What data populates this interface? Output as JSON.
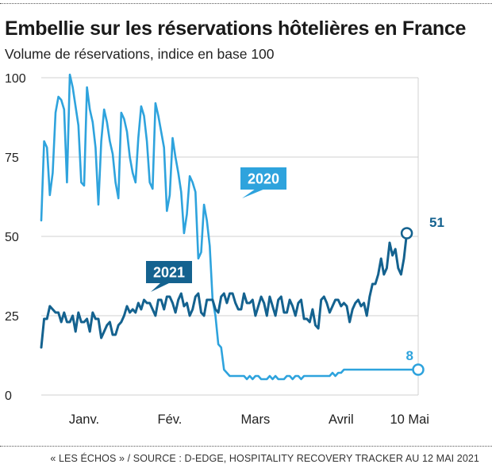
{
  "header": {
    "title": "Embellie sur les réservations hôtelières en France",
    "subtitle": "Volume de réservations, indice en base 100"
  },
  "footer": {
    "source": "« LES ÉCHOS » / SOURCE : D-EDGE, HOSPITALITY RECOVERY TRACKER AU 12 MAI 2021"
  },
  "colors": {
    "series_2020": "#2ea3dd",
    "series_2021": "#14628f",
    "grid": "#d0d0d0",
    "text": "#222222"
  },
  "chart_data": {
    "type": "line",
    "title": "Embellie sur les réservations hôtelières en France",
    "subtitle": "Volume de réservations, indice en base 100",
    "ylabel": "",
    "xlabel": "",
    "ylim": [
      0,
      100
    ],
    "yticks": [
      0,
      25,
      50,
      75,
      100
    ],
    "xlim": [
      1,
      133
    ],
    "grid": true,
    "x_ticks": [
      {
        "label": "Janv.",
        "x": 16
      },
      {
        "label": "Fév.",
        "x": 46
      },
      {
        "label": "Mars",
        "x": 76
      },
      {
        "label": "Avril",
        "x": 106
      },
      {
        "label": "10 Mai",
        "x": 130
      }
    ],
    "annotations": [
      {
        "series": "2020",
        "text": "8"
      },
      {
        "series": "2021",
        "text": "51"
      }
    ],
    "series": [
      {
        "name": "2020",
        "x_start": 1,
        "values": [
          55,
          80,
          78,
          63,
          70,
          89,
          94,
          93,
          90,
          67,
          101,
          97,
          91,
          85,
          67,
          66,
          97,
          90,
          86,
          78,
          60,
          80,
          90,
          86,
          80,
          76,
          67,
          62,
          89,
          87,
          83,
          75,
          70,
          67,
          81,
          91,
          88,
          80,
          67,
          65,
          92,
          88,
          83,
          78,
          58,
          63,
          81,
          75,
          70,
          64,
          51,
          57,
          69,
          67,
          64,
          43,
          45,
          60,
          55,
          47,
          30,
          25,
          16,
          15,
          8,
          7,
          6,
          6,
          6,
          6,
          6,
          6,
          5,
          6,
          5,
          6,
          6,
          5,
          5,
          5,
          6,
          5,
          6,
          5,
          5,
          5,
          6,
          6,
          5,
          6,
          6,
          5,
          6,
          6,
          6,
          6,
          6,
          6,
          6,
          6,
          6,
          6,
          7,
          6,
          7,
          7,
          8,
          8,
          8,
          8,
          8,
          8,
          8,
          8,
          8,
          8,
          8,
          8,
          8,
          8,
          8,
          8,
          8,
          8,
          8,
          8,
          8,
          8,
          8,
          8,
          8,
          8,
          8
        ],
        "endpoint": 8
      },
      {
        "name": "2021",
        "x_start": 1,
        "values": [
          15,
          24,
          24,
          28,
          27,
          26,
          26,
          23,
          26,
          23,
          23,
          25,
          20,
          26,
          23,
          23,
          24,
          20,
          26,
          24,
          24,
          18,
          20,
          22,
          23,
          19,
          19,
          22,
          23,
          25,
          28,
          26,
          27,
          26,
          29,
          27,
          30,
          29,
          29,
          27,
          25,
          30,
          30,
          27,
          31,
          31,
          29,
          26,
          30,
          32,
          28,
          29,
          25,
          27,
          31,
          32,
          26,
          25,
          30,
          30,
          30,
          27,
          26,
          31,
          32,
          29,
          32,
          32,
          29,
          27,
          27,
          32,
          29,
          29,
          30,
          25,
          28,
          31,
          29,
          25,
          31,
          28,
          25,
          30,
          31,
          26,
          26,
          30,
          28,
          25,
          29,
          30,
          24,
          24,
          23,
          27,
          22,
          21,
          30,
          31,
          29,
          26,
          28,
          30,
          30,
          28,
          29,
          28,
          23,
          27,
          29,
          30,
          28,
          29,
          25,
          31,
          35,
          35,
          38,
          43,
          38,
          40,
          48,
          44,
          46,
          40,
          38,
          43,
          51
        ],
        "endpoint": 51
      }
    ]
  }
}
